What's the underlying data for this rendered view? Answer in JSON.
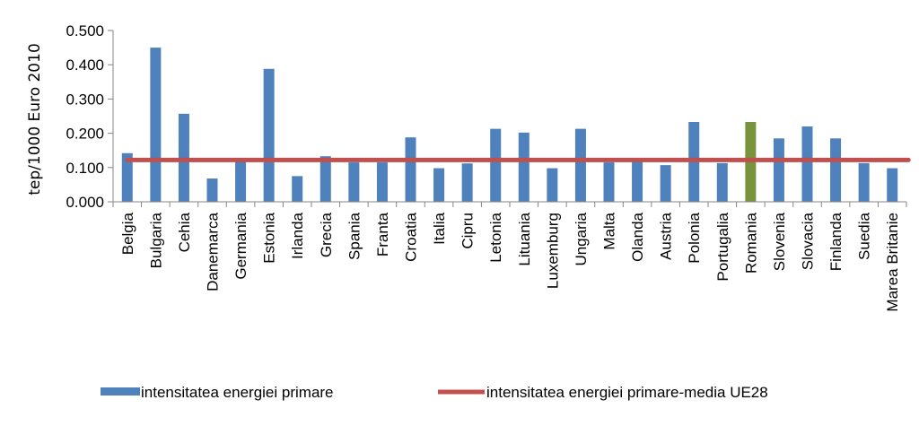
{
  "chart_data": {
    "type": "bar",
    "ylabel": "tep/1000 Euro 2010",
    "ylim": [
      0,
      0.5
    ],
    "yticks": [
      "0.000",
      "0.100",
      "0.200",
      "0.300",
      "0.400",
      "0.500"
    ],
    "grid": false,
    "legend_position": "bottom",
    "categories": [
      "Belgia",
      "Bulgaria",
      "Cehia",
      "Danemarca",
      "Germania",
      "Estonia",
      "Irlanda",
      "Grecia",
      "Spania",
      "Franta",
      "Croatia",
      "Italia",
      "Cipru",
      "Letonia",
      "Lituania",
      "Luxemburg",
      "Ungaria",
      "Malta",
      "Olanda",
      "Austria",
      "Polonia",
      "Portugalia",
      "Romania",
      "Slovenia",
      "Slovacia",
      "Finlanda",
      "Suedia",
      "Marea Britanie"
    ],
    "series": [
      {
        "name": "intensitatea energiei primare",
        "type": "bar",
        "color": "#4f81bd",
        "highlight": {
          "category": "Romania",
          "color": "#77933c"
        },
        "values": [
          0.142,
          0.45,
          0.257,
          0.068,
          0.118,
          0.388,
          0.075,
          0.133,
          0.115,
          0.115,
          0.188,
          0.098,
          0.112,
          0.213,
          0.202,
          0.098,
          0.213,
          0.115,
          0.117,
          0.107,
          0.233,
          0.113,
          0.233,
          0.185,
          0.22,
          0.185,
          0.113,
          0.098
        ]
      },
      {
        "name": "intensitatea energiei primare-media UE28",
        "type": "line",
        "color": "#c0504d",
        "value": 0.122
      }
    ]
  }
}
